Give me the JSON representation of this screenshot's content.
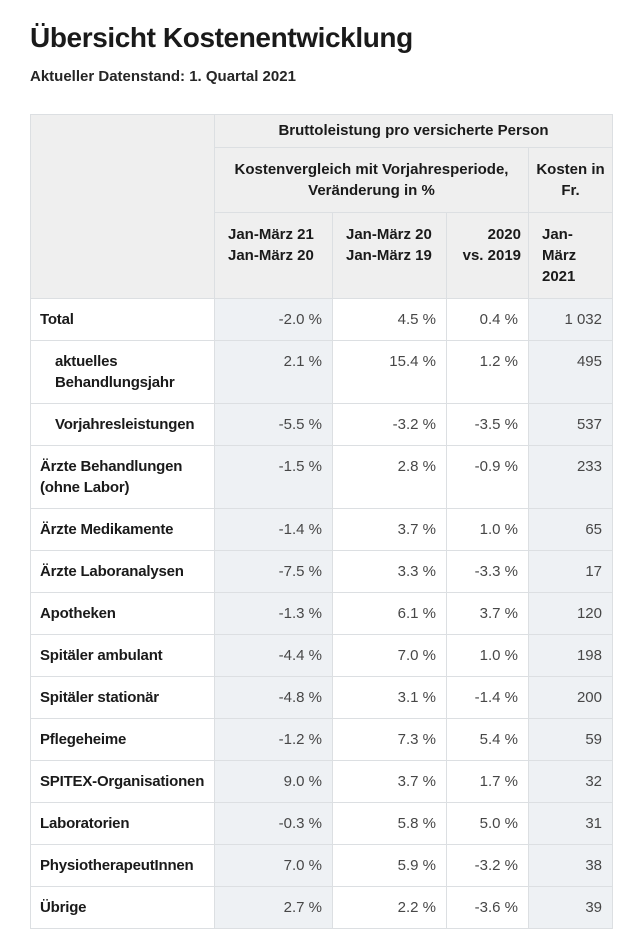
{
  "page": {
    "title": "Übersicht Kostenentwicklung",
    "subtitle": "Aktueller Datenstand: 1. Quartal 2021"
  },
  "table": {
    "group_header": "Bruttoleistung pro versicherte Person",
    "compare_header_line1": "Kostenvergleich mit Vorjahresperiode,",
    "compare_header_line2": "Veränderung in %",
    "cost_header_line1": "Kosten in",
    "cost_header_line2": "Fr.",
    "columns": [
      {
        "line1": "Jan-März 21",
        "line2": "Jan-März 20"
      },
      {
        "line1": "Jan-März 20",
        "line2": "Jan-März 19"
      },
      {
        "line1": "2020",
        "line2": "vs. 2019"
      },
      {
        "line1": "Jan-März",
        "line2": "2021"
      }
    ],
    "rows": [
      {
        "label": "Total",
        "label2": "",
        "indent": false,
        "values": [
          "-2.0 %",
          "4.5 %",
          "0.4 %",
          "1 032"
        ]
      },
      {
        "label": "aktuelles",
        "label2": "Behandlungsjahr",
        "indent": true,
        "values": [
          "2.1 %",
          "15.4 %",
          "1.2 %",
          "495"
        ]
      },
      {
        "label": "Vorjahresleistungen",
        "label2": "",
        "indent": true,
        "values": [
          "-5.5 %",
          "-3.2 %",
          "-3.5 %",
          "537"
        ]
      },
      {
        "label": "Ärzte Behandlungen",
        "label2": "(ohne Labor)",
        "indent": false,
        "values": [
          "-1.5 %",
          "2.8 %",
          "-0.9 %",
          "233"
        ]
      },
      {
        "label": "Ärzte Medikamente",
        "label2": "",
        "indent": false,
        "values": [
          "-1.4 %",
          "3.7 %",
          "1.0 %",
          "65"
        ]
      },
      {
        "label": "Ärzte Laboranalysen",
        "label2": "",
        "indent": false,
        "values": [
          "-7.5 %",
          "3.3 %",
          "-3.3 %",
          "17"
        ]
      },
      {
        "label": "Apotheken",
        "label2": "",
        "indent": false,
        "values": [
          "-1.3 %",
          "6.1 %",
          "3.7 %",
          "120"
        ]
      },
      {
        "label": "Spitäler ambulant",
        "label2": "",
        "indent": false,
        "values": [
          "-4.4 %",
          "7.0 %",
          "1.0 %",
          "198"
        ]
      },
      {
        "label": "Spitäler stationär",
        "label2": "",
        "indent": false,
        "values": [
          "-4.8 %",
          "3.1 %",
          "-1.4 %",
          "200"
        ]
      },
      {
        "label": "Pflegeheime",
        "label2": "",
        "indent": false,
        "values": [
          "-1.2 %",
          "7.3 %",
          "5.4 %",
          "59"
        ]
      },
      {
        "label": "SPITEX-Organisationen",
        "label2": "",
        "indent": false,
        "values": [
          "9.0 %",
          "3.7 %",
          "1.7 %",
          "32"
        ]
      },
      {
        "label": "Laboratorien",
        "label2": "",
        "indent": false,
        "values": [
          "-0.3 %",
          "5.8 %",
          "5.0 %",
          "31"
        ]
      },
      {
        "label": "PhysiotherapeutInnen",
        "label2": "",
        "indent": false,
        "values": [
          "7.0 %",
          "5.9 %",
          "-3.2 %",
          "38"
        ]
      },
      {
        "label": "Übrige",
        "label2": "",
        "indent": false,
        "values": [
          "2.7 %",
          "2.2 %",
          "-3.6 %",
          "39"
        ]
      }
    ],
    "shaded_value_columns": [
      0,
      3
    ]
  },
  "colors": {
    "header_bg": "#efefef",
    "shaded_column_bg": "#eef1f4",
    "border": "#dcdfe2",
    "label_text": "#1a1a1a",
    "value_text": "#474747"
  },
  "chart_data": {
    "type": "table",
    "title": "Übersicht Kostenentwicklung",
    "subtitle": "Aktueller Datenstand: 1. Quartal 2021",
    "group_header": "Bruttoleistung pro versicherte Person",
    "value_columns": [
      "Kostenvergleich mit Vorjahresperiode, Veränderung in %: Jan-März 21 vs. Jan-März 20",
      "Kostenvergleich mit Vorjahresperiode, Veränderung in %: Jan-März 20 vs. Jan-März 19",
      "Kostenvergleich mit Vorjahresperiode, Veränderung in %: 2020 vs. 2019",
      "Kosten in Fr.: Jan-März 2021"
    ],
    "rows": [
      {
        "category": "Total",
        "chg_21v20_pct": -2.0,
        "chg_20v19_pct": 4.5,
        "chg_2020v2019_pct": 0.4,
        "kosten_fr": 1032
      },
      {
        "category": "aktuelles Behandlungsjahr",
        "chg_21v20_pct": 2.1,
        "chg_20v19_pct": 15.4,
        "chg_2020v2019_pct": 1.2,
        "kosten_fr": 495
      },
      {
        "category": "Vorjahresleistungen",
        "chg_21v20_pct": -5.5,
        "chg_20v19_pct": -3.2,
        "chg_2020v2019_pct": -3.5,
        "kosten_fr": 537
      },
      {
        "category": "Ärzte Behandlungen (ohne Labor)",
        "chg_21v20_pct": -1.5,
        "chg_20v19_pct": 2.8,
        "chg_2020v2019_pct": -0.9,
        "kosten_fr": 233
      },
      {
        "category": "Ärzte Medikamente",
        "chg_21v20_pct": -1.4,
        "chg_20v19_pct": 3.7,
        "chg_2020v2019_pct": 1.0,
        "kosten_fr": 65
      },
      {
        "category": "Ärzte Laboranalysen",
        "chg_21v20_pct": -7.5,
        "chg_20v19_pct": 3.3,
        "chg_2020v2019_pct": -3.3,
        "kosten_fr": 17
      },
      {
        "category": "Apotheken",
        "chg_21v20_pct": -1.3,
        "chg_20v19_pct": 6.1,
        "chg_2020v2019_pct": 3.7,
        "kosten_fr": 120
      },
      {
        "category": "Spitäler ambulant",
        "chg_21v20_pct": -4.4,
        "chg_20v19_pct": 7.0,
        "chg_2020v2019_pct": 1.0,
        "kosten_fr": 198
      },
      {
        "category": "Spitäler stationär",
        "chg_21v20_pct": -4.8,
        "chg_20v19_pct": 3.1,
        "chg_2020v2019_pct": -1.4,
        "kosten_fr": 200
      },
      {
        "category": "Pflegeheime",
        "chg_21v20_pct": -1.2,
        "chg_20v19_pct": 7.3,
        "chg_2020v2019_pct": 5.4,
        "kosten_fr": 59
      },
      {
        "category": "SPITEX-Organisationen",
        "chg_21v20_pct": 9.0,
        "chg_20v19_pct": 3.7,
        "chg_2020v2019_pct": 1.7,
        "kosten_fr": 32
      },
      {
        "category": "Laboratorien",
        "chg_21v20_pct": -0.3,
        "chg_20v19_pct": 5.8,
        "chg_2020v2019_pct": 5.0,
        "kosten_fr": 31
      },
      {
        "category": "PhysiotherapeutInnen",
        "chg_21v20_pct": 7.0,
        "chg_20v19_pct": 5.9,
        "chg_2020v2019_pct": -3.2,
        "kosten_fr": 38
      },
      {
        "category": "Übrige",
        "chg_21v20_pct": 2.7,
        "chg_20v19_pct": 2.2,
        "chg_2020v2019_pct": -3.6,
        "kosten_fr": 39
      }
    ]
  }
}
